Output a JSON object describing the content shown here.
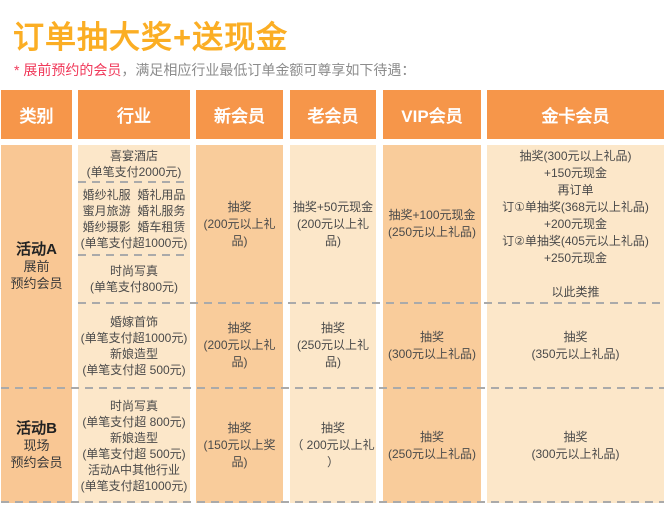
{
  "title": "订单抽大奖+送现金",
  "subtitle": {
    "highlight": "* 展前预约的会员",
    "rest": "，满足相应行业最低订单金额可尊享如下待遇："
  },
  "colors": {
    "title": "#FBAE24",
    "header_bg": "#F6964A",
    "col_category": "#F9C794",
    "col_dark": "#F9CC9B",
    "col_light": "#FCE7C9",
    "subtitle_red": "#F0395A",
    "subtitle_gray": "#8C8C8C",
    "dash": "#AAAAAA"
  },
  "table": {
    "headers": [
      "类别",
      "行业",
      "新会员",
      "老会员",
      "VIP会员",
      "金卡会员"
    ],
    "groupA": {
      "category": [
        "活动A",
        "展前",
        "预约会员"
      ],
      "industry1": [
        "喜宴酒店",
        "(单笔支付2000元)"
      ],
      "industry2": [
        "婚纱礼服  婚礼用品",
        "蜜月旅游  婚礼服务",
        "婚纱摄影  婚车租赁",
        "(单笔支付超1000元)"
      ],
      "industry3": [
        "时尚写真",
        "(单笔支付800元)"
      ],
      "industry4": [
        "婚嫁首饰",
        "(单笔支付超1000元)",
        "新娘造型",
        "(单笔支付超 500元)"
      ],
      "row1": {
        "new_member": [
          "抽奖",
          "(200元以上礼品)"
        ],
        "old_member": [
          "抽奖+50元现金",
          "(200元以上礼品)"
        ],
        "vip_member": [
          "抽奖+100元现金",
          "(250元以上礼品)"
        ],
        "gold_member": [
          "抽奖(300元以上礼品)",
          "+150元现金",
          "再订单",
          "订①单抽奖(368元以上礼品)",
          "+200元现金",
          "订②单抽奖(405元以上礼品)",
          "+250元现金",
          "",
          "以此类推"
        ]
      },
      "row2": {
        "new_member": [
          "抽奖",
          "(200元以上礼品)"
        ],
        "old_member": [
          "抽奖",
          "(250元以上礼品)"
        ],
        "vip_member": [
          "抽奖",
          "(300元以上礼品)"
        ],
        "gold_member": [
          "抽奖",
          "(350元以上礼品)"
        ]
      }
    },
    "groupB": {
      "category": [
        "活动B",
        "现场",
        "预约会员"
      ],
      "industry": [
        "时尚写真",
        "(单笔支付超 800元)",
        "新娘造型",
        "(单笔支付超 500元)",
        "活动A中其他行业",
        "(单笔支付超1000元)"
      ],
      "row": {
        "new_member": [
          "抽奖",
          "(150元以上奖品)"
        ],
        "old_member": [
          "抽奖",
          "（ 200元以上礼 ）"
        ],
        "vip_member": [
          "抽奖",
          "(250元以上礼品)"
        ],
        "gold_member": [
          "抽奖",
          "(300元以上礼品)"
        ]
      }
    }
  }
}
